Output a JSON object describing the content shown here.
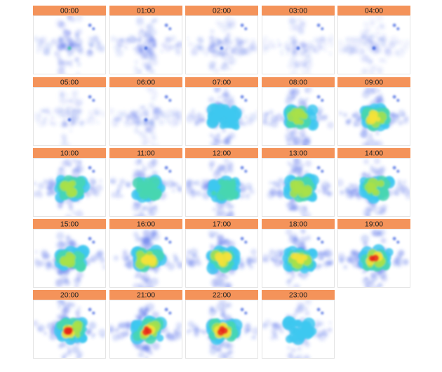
{
  "panels": [
    {
      "label": "00:00"
    },
    {
      "label": "01:00"
    },
    {
      "label": "02:00"
    },
    {
      "label": "03:00"
    },
    {
      "label": "04:00"
    },
    {
      "label": "05:00"
    },
    {
      "label": "06:00"
    },
    {
      "label": "07:00"
    },
    {
      "label": "08:00"
    },
    {
      "label": "09:00"
    },
    {
      "label": "10:00"
    },
    {
      "label": "11:00"
    },
    {
      "label": "12:00"
    },
    {
      "label": "13:00"
    },
    {
      "label": "14:00"
    },
    {
      "label": "15:00"
    },
    {
      "label": "16:00"
    },
    {
      "label": "17:00"
    },
    {
      "label": "18:00"
    },
    {
      "label": "19:00"
    },
    {
      "label": "20:00"
    },
    {
      "label": "21:00"
    },
    {
      "label": "22:00"
    },
    {
      "label": "23:00"
    }
  ]
}
